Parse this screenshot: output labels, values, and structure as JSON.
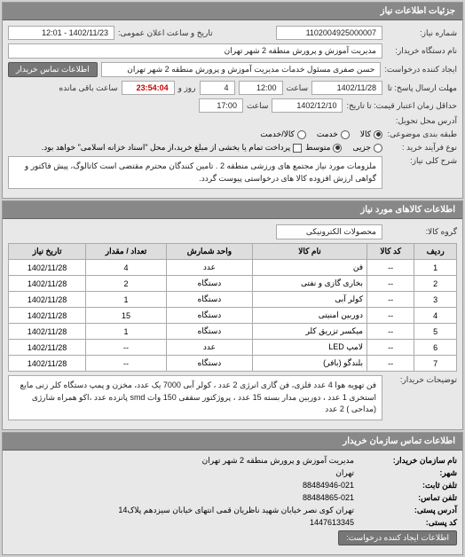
{
  "panel_title": "جزئیات اطلاعات نیاز",
  "header": {
    "request_no_label": "شماره نیاز:",
    "request_no": "1102004925000007",
    "announce_label": "تاریخ و ساعت اعلان عمومی:",
    "announce_value": "1402/11/23 - 12:01",
    "buyer_device_label": "نام دستگاه خریدار:",
    "buyer_device": "مدیریت آموزش و پرورش منطقه 2 شهر تهران",
    "requester_label": "ایجاد کننده درخواست:",
    "requester": "حسن صفری مسئول خدمات مدیریت آموزش و پرورش منطقه 2 شهر تهران",
    "contact_btn": "اطلاعات تماس خریدار",
    "deadline_send_label": "مهلت ارسال پاسخ: تا",
    "deadline_date": "1402/11/28",
    "deadline_time_label": "ساعت",
    "deadline_time": "12:00",
    "remain_days": "4",
    "remain_days_label": "روز و",
    "remain_time": "23:54:04",
    "remain_time_label": "ساعت باقی مانده",
    "valid_until_label": "حداقل زمان اعتبار قیمت: تا تاریخ:",
    "valid_date": "1402/12/10",
    "valid_time_label": "ساعت",
    "valid_time": "17:00",
    "delivery_addr_label": "آدرس محل تحویل:",
    "classification_label": "طبقه بندی موضوعی:",
    "class_opts": {
      "a": "کالا",
      "b": "خدمت",
      "c": "کالا/خدمت"
    },
    "class_selected": 0,
    "process_label": "نوع فرآیند خرید :",
    "process_opts": {
      "a": "جزیی",
      "b": "متوسط"
    },
    "process_selected": 1,
    "process_note": "پرداخت تمام یا بخشی از مبلغ خرید،از محل \"اسناد خزانه اسلامی\" خواهد بود.",
    "sharh_label": "شرح کلی نیاز:",
    "sharh_text": "ملزومات مورد نیاز مجتمع های ورزشی منطقه 2 . تامین کنندگان محترم مقتضی است کاتالوگ، پیش فاکتور و گواهی ارزش افزوده کالا های درخواستی پیوست گردد."
  },
  "goods_panel": {
    "title": "اطلاعات کالاهای مورد نیاز",
    "group_label": "گروه کالا:",
    "group_value": "محصولات الکترونیکی",
    "columns": [
      "ردیف",
      "کد کالا",
      "نام کالا",
      "واحد شمارش",
      "تعداد / مقدار",
      "تاریخ نیاز"
    ],
    "rows": [
      [
        "1",
        "--",
        "فن",
        "عدد",
        "4",
        "1402/11/28"
      ],
      [
        "2",
        "--",
        "بخاری گازی و نفتی",
        "دستگاه",
        "2",
        "1402/11/28"
      ],
      [
        "3",
        "--",
        "کولر آبی",
        "دستگاه",
        "1",
        "1402/11/28"
      ],
      [
        "4",
        "--",
        "دوربین امنیتی",
        "دستگاه",
        "15",
        "1402/11/28"
      ],
      [
        "5",
        "--",
        "میکسر تزریق کلر",
        "دستگاه",
        "1",
        "1402/11/28"
      ],
      [
        "6",
        "--",
        "لامپ LED",
        "عدد",
        "--",
        "1402/11/28"
      ],
      [
        "7",
        "--",
        "بلندگو (بافر)",
        "دستگاه",
        "--",
        "1402/11/28"
      ]
    ],
    "buyer_notes_label": "توضیحات خریدار:",
    "buyer_notes": "فن تهویه هوا 4 عدد فلزی، فن گازی انرژی 2 عدد ، کولر آبی 7000 یک عدد، مخزن و پمپ دستگاه کلر زنی مایع استخری 1 عدد ، دوربین مدار بسته 15 عدد ، پروژکتور سقفی 150 وات smd پانزده عدد ،اکو همراه شارژی (مداحی ) 2 عدد"
  },
  "contact_panel": {
    "title": "اطلاعات تماس سازمان خریدار",
    "org_label": "نام سازمان خریدار:",
    "org": "مدیریت آموزش و پرورش منطقه 2 شهر تهران",
    "city_label": "شهر:",
    "city": "تهران",
    "phone_label": "تلفن ثابت:",
    "phone": "88484946-021",
    "fax_label": "تلفن تماس:",
    "fax": "88484865-021",
    "addr_label": "آدرس پستی:",
    "addr": "تهران کوی نصر خیابان شهید ناظریان قمی انتهای خیابان سیزدهم پلاک14",
    "post_label": "کد پستی:",
    "post": "1447613345",
    "create_btn": "اطلاعات ایجاد کننده درخواست:"
  }
}
